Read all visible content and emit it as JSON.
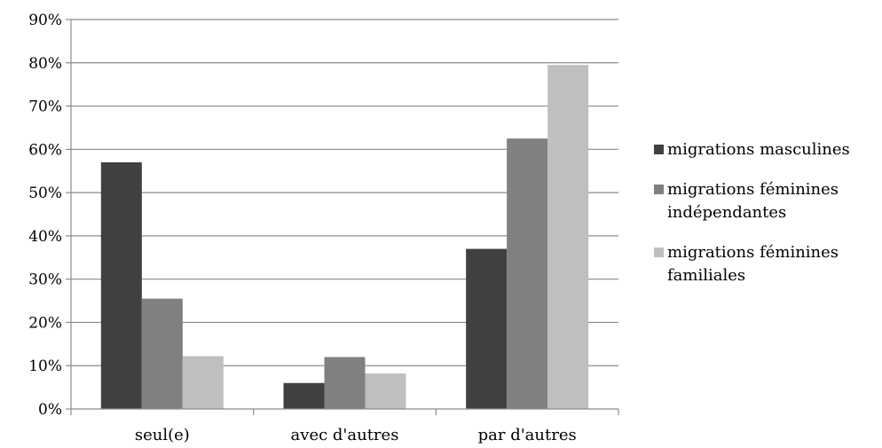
{
  "chart_data": {
    "type": "bar",
    "title": "",
    "xlabel": "",
    "ylabel": "",
    "categories": [
      "seul(e)",
      "avec d'autres",
      "par d'autres"
    ],
    "series": [
      {
        "name": "migrations masculines",
        "color": "#404040",
        "values": [
          57,
          6,
          37
        ]
      },
      {
        "name": "migrations féminines\nindépendantes",
        "color": "#808080",
        "values": [
          25.5,
          12,
          62.5
        ]
      },
      {
        "name": "migrations féminines\nfamiliales",
        "color": "#bfbfbf",
        "values": [
          12.2,
          8.2,
          79.5
        ]
      }
    ],
    "ylim": [
      0,
      90
    ],
    "yticks": [
      0,
      10,
      20,
      30,
      40,
      50,
      60,
      70,
      80,
      90
    ],
    "ytick_labels": [
      "0%",
      "10%",
      "20%",
      "30%",
      "40%",
      "50%",
      "60%",
      "70%",
      "80%",
      "90%"
    ],
    "grid": true,
    "legend_position": "right"
  }
}
